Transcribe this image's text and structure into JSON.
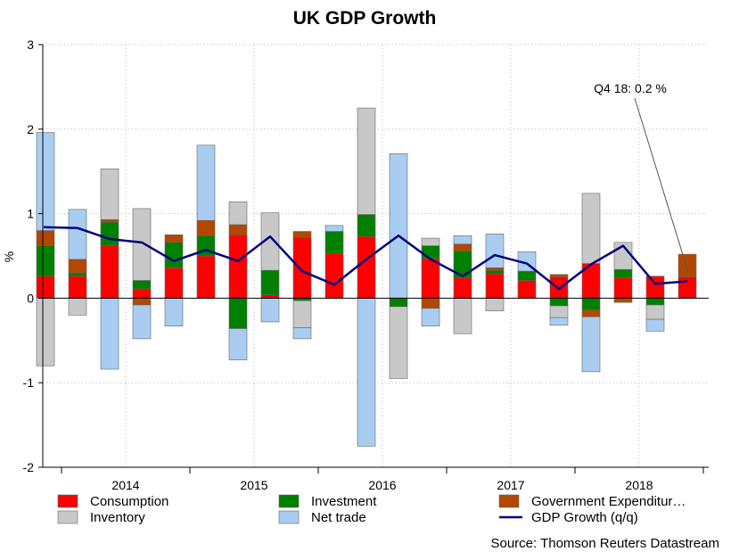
{
  "chart_data": {
    "type": "bar",
    "stacked": true,
    "title": "UK GDP Growth",
    "ylabel": "%",
    "xlabel": "",
    "ylim": [
      -2,
      3
    ],
    "yticks": [
      -2,
      -1,
      0,
      1,
      2,
      3
    ],
    "year_labels": [
      {
        "label": "2014",
        "start_quarter": 1
      },
      {
        "label": "2015",
        "start_quarter": 5
      },
      {
        "label": "2016",
        "start_quarter": 9
      },
      {
        "label": "2017",
        "start_quarter": 13
      },
      {
        "label": "2018",
        "start_quarter": 17
      }
    ],
    "quarters": [
      "Q4 13",
      "Q1 14",
      "Q2 14",
      "Q3 14",
      "Q4 14",
      "Q1 15",
      "Q2 15",
      "Q3 15",
      "Q4 15",
      "Q1 16",
      "Q2 16",
      "Q3 16",
      "Q4 16",
      "Q1 17",
      "Q2 17",
      "Q3 17",
      "Q4 17",
      "Q1 18",
      "Q2 18",
      "Q3 18",
      "Q4 18"
    ],
    "series": [
      {
        "name": "Consumption",
        "color": "#ff0000",
        "values": [
          0.26,
          0.26,
          0.62,
          0.11,
          0.36,
          0.5,
          0.75,
          0.04,
          0.72,
          0.53,
          0.73,
          0.0,
          0.47,
          0.24,
          0.29,
          0.21,
          0.25,
          0.41,
          0.24,
          0.26,
          0.25
        ]
      },
      {
        "name": "Investment",
        "color": "#008000",
        "values": [
          0.36,
          0.04,
          0.28,
          0.1,
          0.3,
          0.24,
          -0.36,
          0.29,
          -0.03,
          0.26,
          0.26,
          -0.1,
          0.15,
          0.32,
          0.04,
          0.11,
          -0.09,
          -0.14,
          0.1,
          -0.08,
          0.0
        ]
      },
      {
        "name": "Government Expenditure",
        "color": "#b34700",
        "values": [
          0.18,
          0.16,
          0.03,
          -0.08,
          0.09,
          0.18,
          0.12,
          0.0,
          0.07,
          0.0,
          0.0,
          0.0,
          -0.12,
          0.08,
          0.03,
          0.0,
          0.03,
          -0.08,
          -0.05,
          0.0,
          0.27
        ]
      },
      {
        "name": "Inventory",
        "color": "#c8c8c8",
        "values": [
          -0.8,
          -0.2,
          0.6,
          0.85,
          0.0,
          0.0,
          0.27,
          0.68,
          -0.32,
          0.0,
          1.26,
          -0.85,
          0.09,
          -0.42,
          -0.15,
          0.0,
          -0.14,
          0.83,
          0.32,
          -0.17,
          0.0
        ]
      },
      {
        "name": "Net trade",
        "color": "#a8cdf0",
        "values": [
          1.16,
          0.59,
          -0.84,
          -0.4,
          -0.33,
          0.89,
          -0.37,
          -0.28,
          -0.13,
          0.07,
          -1.75,
          1.71,
          -0.21,
          0.1,
          0.4,
          0.23,
          -0.09,
          -0.65,
          0.0,
          -0.14,
          0.0
        ]
      }
    ],
    "line": {
      "name": "GDP Growth (q/q)",
      "color": "#000080",
      "values": [
        0.84,
        0.83,
        0.7,
        0.66,
        0.44,
        0.57,
        0.44,
        0.73,
        0.32,
        0.16,
        0.46,
        0.74,
        0.46,
        0.26,
        0.51,
        0.41,
        0.11,
        0.4,
        0.62,
        0.17,
        0.2
      ]
    },
    "annotation": "Q4 18: 0.2 %",
    "legend": [
      {
        "label": "Consumption",
        "kind": "box",
        "color": "#ff0000"
      },
      {
        "label": "Investment",
        "kind": "box",
        "color": "#008000"
      },
      {
        "label": "Government Expenditur…",
        "kind": "box",
        "color": "#b34700"
      },
      {
        "label": "Inventory",
        "kind": "box",
        "color": "#c8c8c8"
      },
      {
        "label": "Net trade",
        "kind": "box",
        "color": "#a8cdf0"
      },
      {
        "label": "GDP Growth (q/q)",
        "kind": "line",
        "color": "#000080"
      }
    ],
    "legend_position": "bottom",
    "source": "Source: Thomson Reuters Datastream",
    "grid": true
  }
}
